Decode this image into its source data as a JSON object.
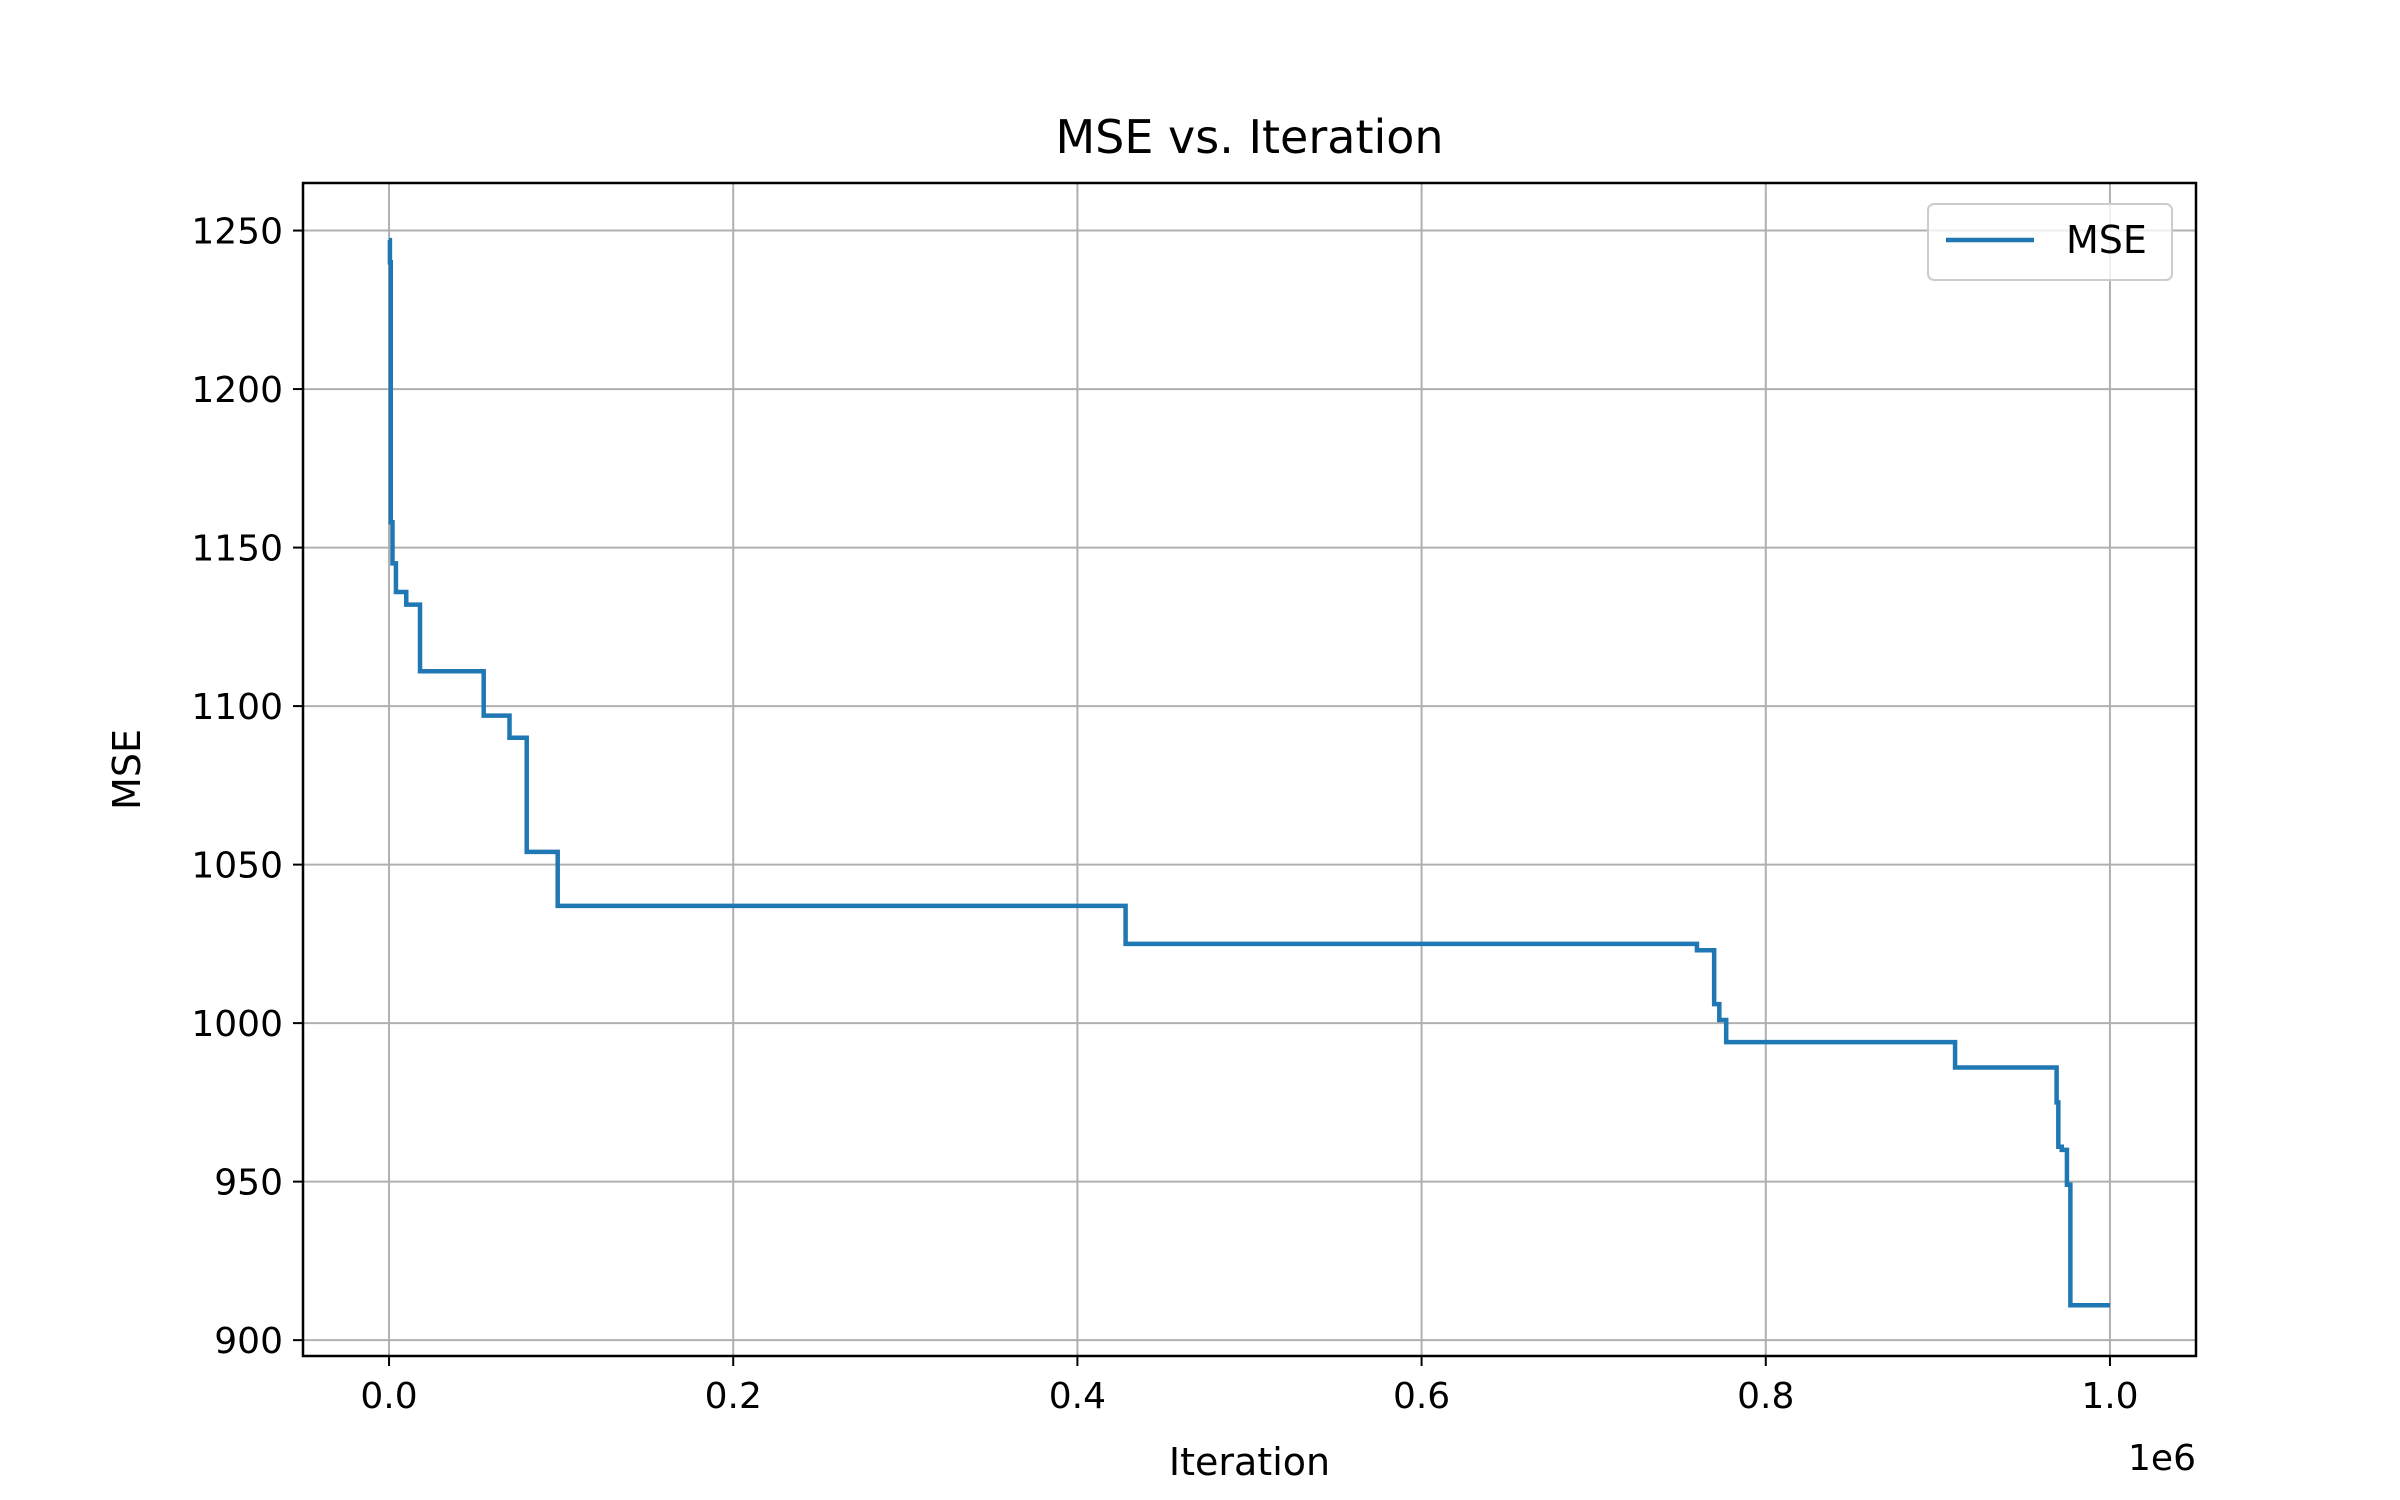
{
  "chart_data": {
    "type": "line",
    "title": "MSE vs. Iteration",
    "xlabel": "Iteration",
    "ylabel": "MSE",
    "x_offset_label": "1e6",
    "xlim": [
      -0.05,
      1.05
    ],
    "ylim": [
      895,
      1265
    ],
    "x_ticks": [
      0.0,
      0.2,
      0.4,
      0.6,
      0.8,
      1.0
    ],
    "x_tick_labels": [
      "0.0",
      "0.2",
      "0.4",
      "0.6",
      "0.8",
      "1.0"
    ],
    "y_ticks": [
      900,
      950,
      1000,
      1050,
      1100,
      1150,
      1200,
      1250
    ],
    "y_tick_labels": [
      "900",
      "950",
      "1000",
      "1050",
      "1100",
      "1150",
      "1200",
      "1250"
    ],
    "grid": true,
    "legend_position": "top-right",
    "series": [
      {
        "name": "MSE",
        "color": "#1f77b4",
        "step": true,
        "x": [
          0,
          0.0005,
          0.001,
          0.002,
          0.004,
          0.005,
          0.01,
          0.018,
          0.055,
          0.07,
          0.08,
          0.098,
          0.428,
          0.76,
          0.77,
          0.773,
          0.777,
          0.91,
          0.96,
          0.969,
          0.97,
          0.972,
          0.975,
          0.977,
          1.0
        ],
        "y": [
          1247,
          1240,
          1158,
          1145,
          1136,
          1136,
          1132,
          1111,
          1097,
          1090,
          1054,
          1037,
          1025,
          1023,
          1006,
          1001,
          994,
          986,
          986,
          975,
          961,
          960,
          949,
          911,
          911
        ]
      }
    ]
  }
}
